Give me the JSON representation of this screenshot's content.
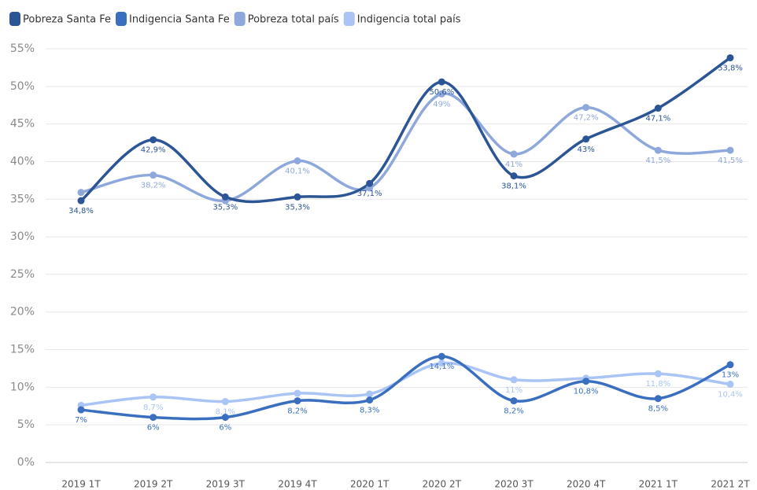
{
  "chart_data": {
    "type": "line",
    "categories": [
      "2019 1T",
      "2019 2T",
      "2019 3T",
      "2019 4T",
      "2020 1T",
      "2020 2T",
      "2020 3T",
      "2020 4T",
      "2021 1T",
      "2021 2T"
    ],
    "series": [
      {
        "name": "Pobreza Santa Fe",
        "color": "#2c5596",
        "values": [
          34.8,
          42.9,
          35.3,
          35.3,
          37.1,
          50.6,
          38.1,
          43,
          47.1,
          53.8
        ],
        "value_labels": [
          "34,8%",
          "42,9%",
          "35,3%",
          "35,3%",
          "37,1%",
          "50,6%",
          "38,1%",
          "43%",
          "47,1%",
          "53,8%"
        ]
      },
      {
        "name": "Indigencia Santa Fe",
        "color": "#3a6fc0",
        "values": [
          7,
          6,
          6,
          8.2,
          8.3,
          14.1,
          8.2,
          10.8,
          8.5,
          13
        ],
        "value_labels": [
          "7%",
          "6%",
          "6%",
          "8,2%",
          "8,3%",
          "14,1%",
          "8,2%",
          "10,8%",
          "8,5%",
          "13%"
        ]
      },
      {
        "name": "Pobreza total país",
        "color": "#8fa8dc",
        "values": [
          35.9,
          38.2,
          34.8,
          40.1,
          36.5,
          49,
          41,
          47.2,
          41.5,
          41.5
        ],
        "value_labels": [
          null,
          "38,2%",
          null,
          "40,1%",
          null,
          "49%",
          "41%",
          "47,2%",
          "41,5%",
          "41,5%"
        ]
      },
      {
        "name": "Indigencia total país",
        "color": "#a9c4f5",
        "values": [
          7.6,
          8.7,
          8.1,
          9.2,
          9.1,
          13.2,
          11,
          11.2,
          11.8,
          10.4
        ],
        "value_labels": [
          null,
          "8,7%",
          "8,1%",
          null,
          null,
          null,
          "11%",
          null,
          "11,8%",
          "10,4%"
        ]
      }
    ],
    "ylim": [
      0,
      55
    ],
    "yticks": [
      {
        "value": 0,
        "label": "0%"
      },
      {
        "value": 5,
        "label": "5%"
      },
      {
        "value": 10,
        "label": "10%"
      },
      {
        "value": 15,
        "label": "15%"
      },
      {
        "value": 20,
        "label": "20%"
      },
      {
        "value": 25,
        "label": "25%"
      },
      {
        "value": 30,
        "label": "30%"
      },
      {
        "value": 35,
        "label": "35%"
      },
      {
        "value": 40,
        "label": "40%"
      },
      {
        "value": 45,
        "label": "45%"
      },
      {
        "value": 50,
        "label": "50%"
      },
      {
        "value": 55,
        "label": "55%"
      }
    ],
    "grid": true,
    "legend": "top-left"
  }
}
